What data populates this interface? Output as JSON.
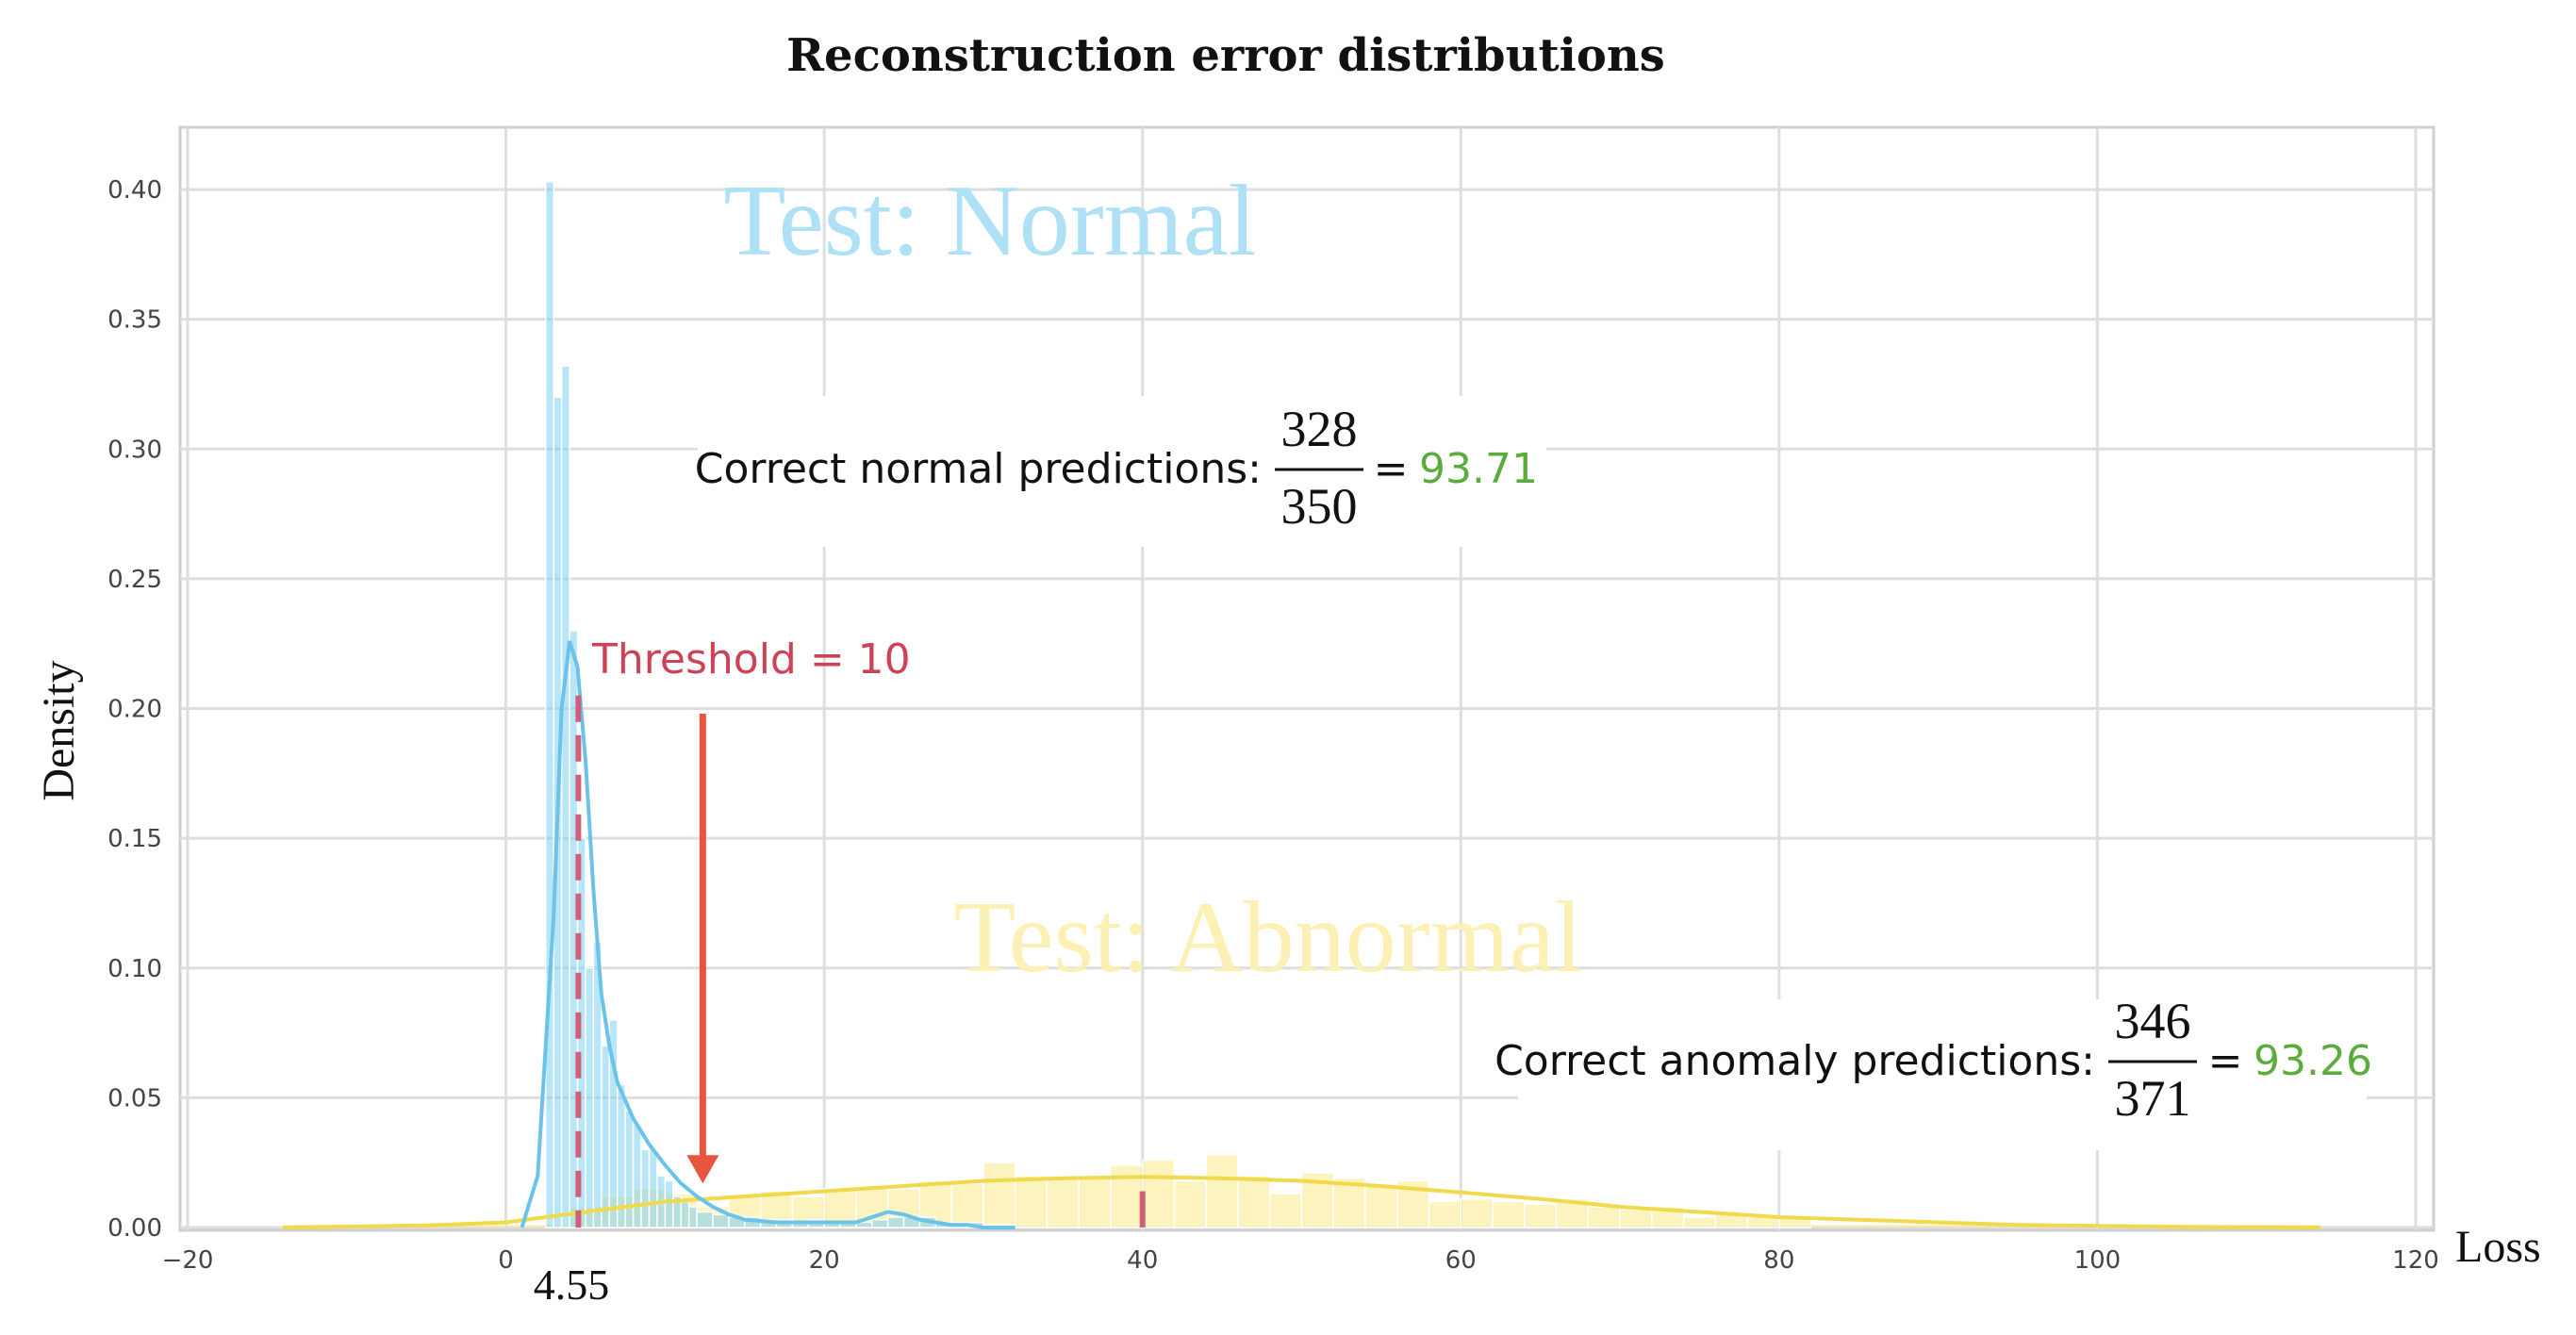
{
  "chart_data": {
    "type": "histogram",
    "title": "Reconstruction error  distributions",
    "xlabel": "Loss",
    "ylabel": "Density",
    "xlim": [
      -20,
      120
    ],
    "ylim": [
      0,
      0.42
    ],
    "xticks": [
      -20,
      0,
      20,
      40,
      60,
      80,
      100,
      120
    ],
    "xtick_labels": [
      "−20",
      "0",
      "20",
      "40",
      "60",
      "80",
      "100",
      "120"
    ],
    "yticks": [
      0.0,
      0.05,
      0.1,
      0.15,
      0.2,
      0.25,
      0.3,
      0.35,
      0.4
    ],
    "ytick_labels": [
      "0.00",
      "0.05",
      "0.10",
      "0.15",
      "0.20",
      "0.25",
      "0.30",
      "0.35",
      "0.40"
    ],
    "grid": true,
    "colors": {
      "normal": "#7dcff0",
      "abnormal": "#fbe98a",
      "threshold": "#e8553f",
      "mean_marker": "#d0607a",
      "accuracy": "#5aad3c"
    },
    "series": [
      {
        "name": "Test: Normal",
        "color": "#7dcff0",
        "histogram": {
          "bin_edges": [
            2.5,
            3.0,
            3.5,
            4.0,
            4.5,
            5.0,
            5.5,
            6.0,
            6.5,
            7.0,
            7.5,
            8.0,
            8.5,
            9.0,
            9.5,
            10.0,
            10.5,
            11.0,
            11.5,
            12.0,
            13.0,
            14.0,
            15.0,
            16.0,
            17.0,
            18.0,
            19.0,
            20.0,
            21.0,
            22.0,
            23.0,
            24.0,
            25.0,
            26.0,
            27.0,
            28.0,
            29.0,
            30.0,
            31.0,
            32.0
          ],
          "densities": [
            0.403,
            0.32,
            0.332,
            0.23,
            0.15,
            0.1,
            0.11,
            0.07,
            0.08,
            0.055,
            0.045,
            0.04,
            0.03,
            0.03,
            0.02,
            0.018,
            0.012,
            0.01,
            0.008,
            0.006,
            0.005,
            0.004,
            0.004,
            0.003,
            0.003,
            0.002,
            0.003,
            0.002,
            0.002,
            0.002,
            0.003,
            0.004,
            0.004,
            0.004,
            0.002,
            0.002,
            0.002,
            0.001,
            0.001
          ]
        },
        "kde": {
          "x": [
            1,
            2,
            3,
            3.5,
            4,
            4.5,
            5,
            5.5,
            6,
            6.5,
            7,
            8,
            9,
            10,
            11,
            12,
            13,
            14,
            15,
            17,
            19,
            20,
            22,
            23,
            24,
            25,
            26,
            27,
            28,
            29,
            30,
            31,
            32
          ],
          "y": [
            0.0,
            0.02,
            0.12,
            0.2,
            0.226,
            0.216,
            0.18,
            0.13,
            0.09,
            0.07,
            0.056,
            0.042,
            0.032,
            0.024,
            0.017,
            0.012,
            0.008,
            0.005,
            0.003,
            0.002,
            0.002,
            0.002,
            0.002,
            0.004,
            0.006,
            0.005,
            0.003,
            0.002,
            0.001,
            0.001,
            0.0,
            0.0,
            0.0
          ]
        },
        "mean_marker": 4.55
      },
      {
        "name": "Test: Abnormal",
        "color": "#fbe98a",
        "histogram": {
          "bin_edges": [
            4,
            6,
            8,
            10,
            12,
            14,
            16,
            18,
            20,
            22,
            24,
            26,
            28,
            30,
            32,
            34,
            36,
            38,
            40,
            42,
            44,
            46,
            48,
            50,
            52,
            54,
            56,
            58,
            60,
            62,
            64,
            66,
            68,
            70,
            72,
            74,
            76,
            78,
            80,
            82
          ],
          "densities": [
            0.008,
            0.012,
            0.015,
            0.013,
            0.008,
            0.012,
            0.014,
            0.012,
            0.015,
            0.016,
            0.015,
            0.018,
            0.017,
            0.025,
            0.02,
            0.019,
            0.02,
            0.024,
            0.026,
            0.018,
            0.028,
            0.02,
            0.013,
            0.021,
            0.019,
            0.016,
            0.018,
            0.01,
            0.011,
            0.01,
            0.009,
            0.011,
            0.008,
            0.007,
            0.008,
            0.004,
            0.005,
            0.004,
            0.004
          ],
          "tail": [
            {
              "from": -14,
              "to": 4,
              "density": 0.001
            },
            {
              "from": 82,
              "to": 114,
              "density": 0.001
            }
          ]
        },
        "kde": {
          "x": [
            -14,
            -5,
            0,
            5,
            10,
            15,
            20,
            25,
            30,
            35,
            40,
            45,
            50,
            55,
            60,
            65,
            70,
            75,
            80,
            85,
            90,
            95,
            100,
            105,
            110,
            114
          ],
          "y": [
            0.0,
            0.0008,
            0.002,
            0.006,
            0.01,
            0.012,
            0.014,
            0.016,
            0.018,
            0.019,
            0.0195,
            0.019,
            0.018,
            0.016,
            0.0135,
            0.011,
            0.008,
            0.006,
            0.004,
            0.003,
            0.002,
            0.001,
            0.0006,
            0.0003,
            0.0001,
            0.0
          ]
        },
        "mean_marker": 40
      }
    ],
    "annotations": {
      "normal_label": "Test: Normal",
      "abnormal_label": "Test: Abnormal",
      "threshold_label": "Threshold = 10",
      "threshold_arrow_x": 10,
      "threshold_value": "4.55",
      "normal_accuracy": {
        "prefix": "Correct normal predictions:",
        "numerator": "328",
        "denominator": "350",
        "equals": "=",
        "result": "93.71"
      },
      "anomaly_accuracy": {
        "prefix": "Correct anomaly predictions:",
        "numerator": "346",
        "denominator": "371",
        "equals": "=",
        "result": "93.26"
      }
    }
  }
}
